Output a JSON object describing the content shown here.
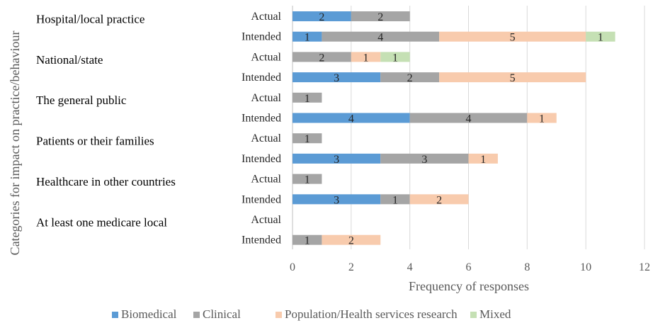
{
  "chart_data": {
    "type": "bar",
    "orientation": "horizontal",
    "stacked": true,
    "xlabel": "Frequency of responses",
    "ylabel": "Categories for impact on practice/behaviour",
    "xlim": [
      0,
      12
    ],
    "xticks": [
      0,
      2,
      4,
      6,
      8,
      10,
      12
    ],
    "grid": "vertical",
    "legend_position": "bottom",
    "groups": [
      {
        "name": "Hospital/local practice",
        "bars": [
          {
            "label": "Actual",
            "values": [
              2,
              2,
              0,
              0
            ]
          },
          {
            "label": "Intended",
            "values": [
              1,
              4,
              5,
              1
            ]
          }
        ]
      },
      {
        "name": "National/state",
        "bars": [
          {
            "label": "Actual",
            "values": [
              0,
              2,
              1,
              1
            ]
          },
          {
            "label": "Intended",
            "values": [
              3,
              2,
              5,
              0
            ]
          }
        ]
      },
      {
        "name": "The general public",
        "bars": [
          {
            "label": "Actual",
            "values": [
              0,
              1,
              0,
              0
            ]
          },
          {
            "label": "Intended",
            "values": [
              4,
              4,
              1,
              0
            ]
          }
        ]
      },
      {
        "name": "Patients or their families",
        "bars": [
          {
            "label": "Actual",
            "values": [
              0,
              1,
              0,
              0
            ]
          },
          {
            "label": "Intended",
            "values": [
              3,
              3,
              1,
              0
            ]
          }
        ]
      },
      {
        "name": "Healthcare in other countries",
        "bars": [
          {
            "label": "Actual",
            "values": [
              0,
              1,
              0,
              0
            ]
          },
          {
            "label": "Intended",
            "values": [
              3,
              1,
              2,
              0
            ]
          }
        ]
      },
      {
        "name": "At least one medicare local",
        "bars": [
          {
            "label": "Actual",
            "values": [
              0,
              0,
              0,
              0
            ]
          },
          {
            "label": "Intended",
            "values": [
              0,
              1,
              2,
              0
            ]
          }
        ]
      }
    ],
    "series": [
      {
        "name": "Biomedical",
        "color": "#5b9bd5"
      },
      {
        "name": "Clinical",
        "color": "#a5a5a5"
      },
      {
        "name": "Population/Health services research",
        "color": "#f8cbad"
      },
      {
        "name": "Mixed",
        "color": "#c5e0b4"
      }
    ]
  }
}
